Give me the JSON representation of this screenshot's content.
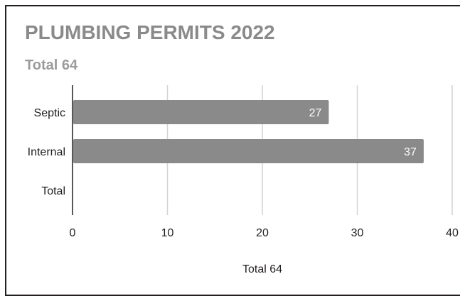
{
  "chart_data": {
    "type": "bar",
    "orientation": "horizontal",
    "title": "PLUMBING PERMITS 2022",
    "subtitle": "Total 64",
    "categories": [
      "Septic",
      "Internal",
      "Total"
    ],
    "values": [
      27,
      37,
      null
    ],
    "data_labels": [
      "27",
      "37",
      ""
    ],
    "xlabel": "Total 64",
    "ylabel": "",
    "xlim": [
      0,
      40
    ],
    "xticks": [
      "0",
      "10",
      "20",
      "30",
      "40"
    ],
    "grid": true,
    "bar_color": "#8a8a8b",
    "label_color": "#ffffff",
    "grid_color": "#d3d3d3",
    "text_color": "#231f20"
  }
}
